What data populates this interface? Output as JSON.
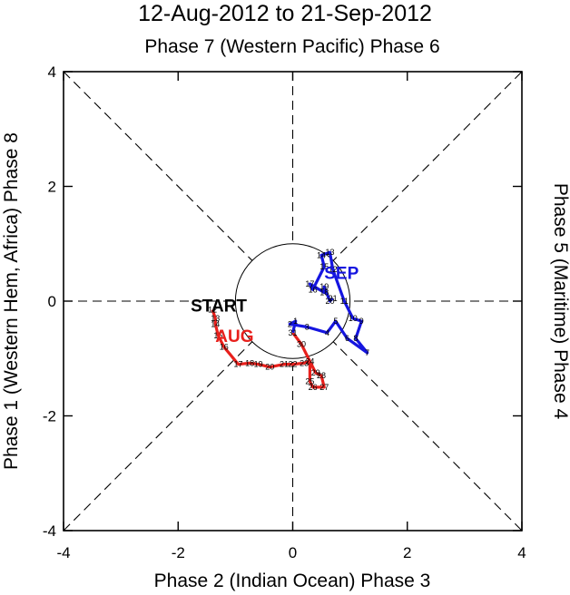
{
  "chart_data": {
    "type": "line",
    "title": "12-Aug-2012 to 21-Sep-2012",
    "subtitle": "Phase 7 (Western Pacific) Phase 6",
    "xlabel": "Phase 2 (Indian Ocean) Phase 3",
    "ylabel_left": "Phase 1 (Western Hem, Africa) Phase 8",
    "ylabel_right": "Phase 5 (Maritime) Phase 4",
    "xlim": [
      -4,
      4
    ],
    "ylim": [
      -4,
      4
    ],
    "x_ticks": [
      -4,
      -2,
      0,
      2,
      4
    ],
    "y_ticks": [
      -4,
      -2,
      0,
      2,
      4
    ],
    "x_tick_labels": [
      "-4",
      "-2",
      "0",
      "2",
      "4"
    ],
    "y_tick_labels": [
      "-4",
      "-2",
      "0",
      "2",
      "4"
    ],
    "unit_circle_radius": 1,
    "start_label": "START",
    "start_point": [
      -1.4,
      -0.15
    ],
    "series": [
      {
        "name": "AUG",
        "color": "#e8201c",
        "label_pos": [
          -1.35,
          -0.6
        ],
        "points": [
          {
            "day": "12",
            "x": -1.4,
            "y": -0.15
          },
          {
            "day": "13",
            "x": -1.35,
            "y": -0.3
          },
          {
            "day": "14",
            "x": -1.35,
            "y": -0.4
          },
          {
            "day": "15",
            "x": -1.3,
            "y": -0.6
          },
          {
            "day": "16",
            "x": -1.2,
            "y": -0.8
          },
          {
            "day": "17",
            "x": -0.95,
            "y": -1.1
          },
          {
            "day": "18",
            "x": -0.75,
            "y": -1.08
          },
          {
            "day": "19",
            "x": -0.6,
            "y": -1.1
          },
          {
            "day": "20",
            "x": -0.4,
            "y": -1.15
          },
          {
            "day": "21",
            "x": -0.15,
            "y": -1.1
          },
          {
            "day": "22",
            "x": 0.0,
            "y": -1.1
          },
          {
            "day": "23",
            "x": 0.2,
            "y": -1.08
          },
          {
            "day": "24",
            "x": 0.3,
            "y": -1.05
          },
          {
            "day": "25",
            "x": 0.3,
            "y": -1.4
          },
          {
            "day": "26",
            "x": 0.35,
            "y": -1.5
          },
          {
            "day": "27",
            "x": 0.55,
            "y": -1.5
          },
          {
            "day": "28",
            "x": 0.5,
            "y": -1.3
          },
          {
            "day": "29",
            "x": 0.4,
            "y": -1.25
          },
          {
            "day": "30",
            "x": 0.15,
            "y": -0.75
          },
          {
            "day": "31",
            "x": 0.0,
            "y": -0.55
          }
        ]
      },
      {
        "name": "SEP",
        "color": "#1515e0",
        "label_pos": [
          0.55,
          0.5
        ],
        "points": [
          {
            "day": "1",
            "x": 0.05,
            "y": -0.35
          },
          {
            "day": "2",
            "x": -0.05,
            "y": -0.4
          },
          {
            "day": "3",
            "x": 0.25,
            "y": -0.45
          },
          {
            "day": "4",
            "x": 0.6,
            "y": -0.55
          },
          {
            "day": "5",
            "x": 0.75,
            "y": -0.35
          },
          {
            "day": "6",
            "x": 0.95,
            "y": -0.65
          },
          {
            "day": "7",
            "x": 1.3,
            "y": -0.9
          },
          {
            "day": "8",
            "x": 1.1,
            "y": -0.65
          },
          {
            "day": "9",
            "x": 1.2,
            "y": -0.35
          },
          {
            "day": "10",
            "x": 1.05,
            "y": -0.3
          },
          {
            "day": "11",
            "x": 0.9,
            "y": 0.0
          },
          {
            "day": "12",
            "x": 0.7,
            "y": 0.55
          },
          {
            "day": "13",
            "x": 0.65,
            "y": 0.85
          },
          {
            "day": "14",
            "x": 0.5,
            "y": 0.8
          },
          {
            "day": "15",
            "x": 0.55,
            "y": 0.6
          },
          {
            "day": "16",
            "x": 0.35,
            "y": 0.2
          },
          {
            "day": "17",
            "x": 0.3,
            "y": 0.3
          },
          {
            "day": "18",
            "x": 0.55,
            "y": 0.15
          },
          {
            "day": "19",
            "x": 0.55,
            "y": 0.25
          },
          {
            "day": "20",
            "x": 0.65,
            "y": 0.0
          },
          {
            "day": "21",
            "x": 0.7,
            "y": 0.05
          }
        ]
      }
    ]
  }
}
